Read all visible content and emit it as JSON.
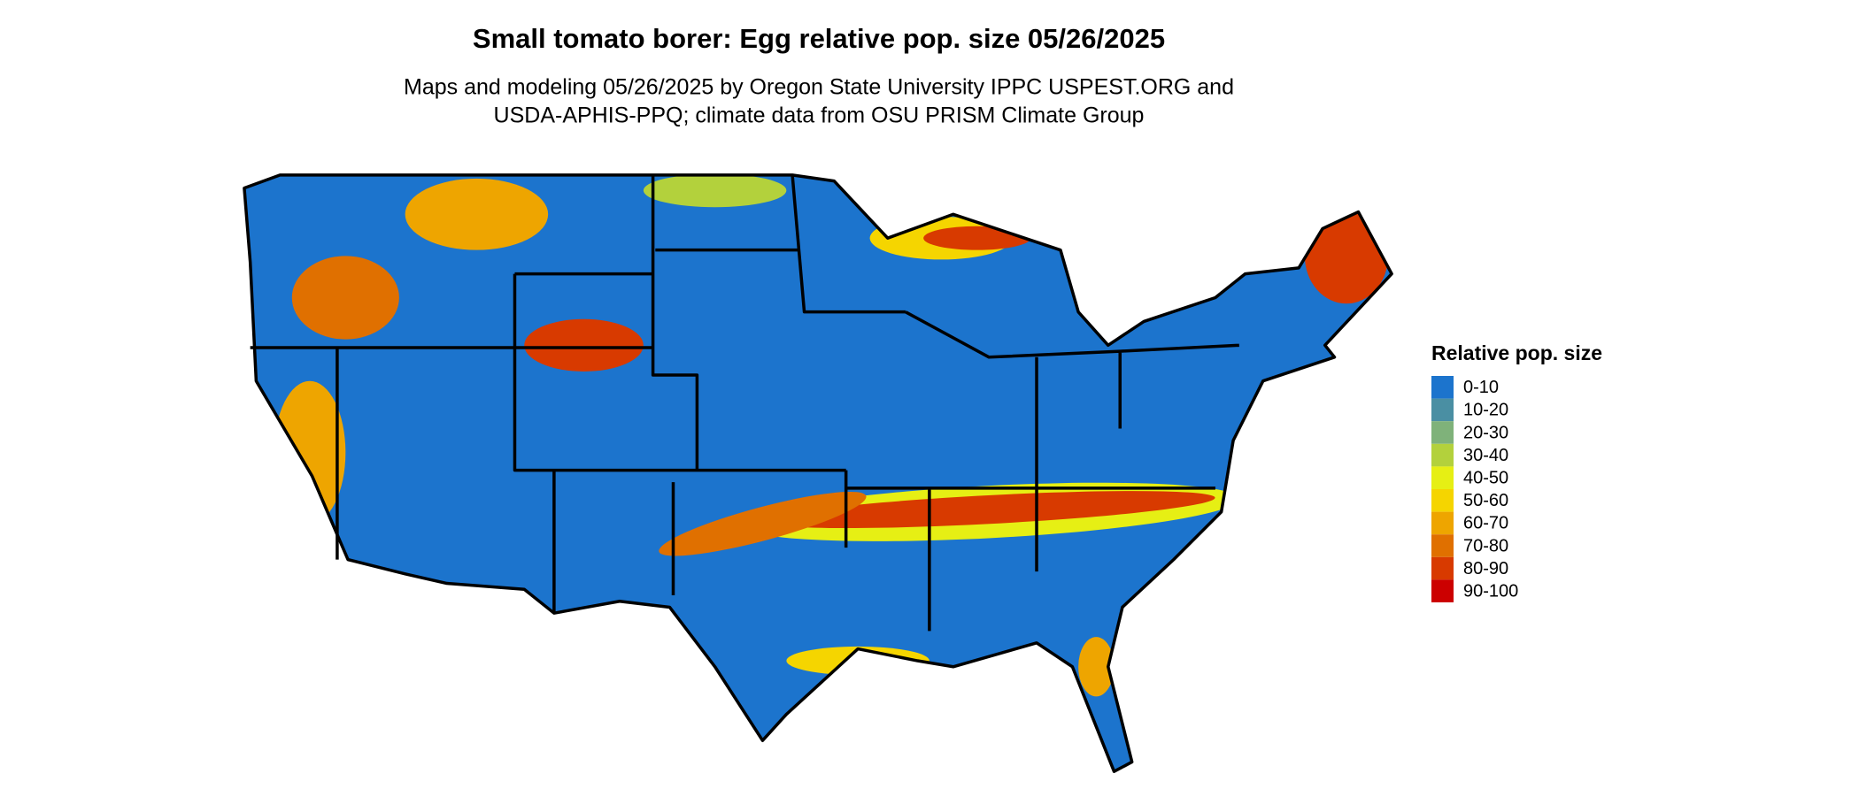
{
  "title": "Small tomato borer: Egg relative pop. size 05/26/2025",
  "subtitle": [
    "Maps and modeling 05/26/2025 by Oregon State University IPPC USPEST.ORG and",
    "USDA-APHIS-PPQ; climate data from OSU PRISM Climate Group"
  ],
  "legend": {
    "title": "Relative pop. size",
    "items": [
      {
        "label": "0-10",
        "color": "#1c74cd"
      },
      {
        "label": "10-20",
        "color": "#4a8fa3"
      },
      {
        "label": "20-30",
        "color": "#7fb27a"
      },
      {
        "label": "30-40",
        "color": "#b3d13c"
      },
      {
        "label": "40-50",
        "color": "#e6ef14"
      },
      {
        "label": "50-60",
        "color": "#f5d500"
      },
      {
        "label": "60-70",
        "color": "#eea500"
      },
      {
        "label": "70-80",
        "color": "#e07000"
      },
      {
        "label": "80-90",
        "color": "#d83a00"
      },
      {
        "label": "90-100",
        "color": "#cc0000"
      }
    ]
  }
}
